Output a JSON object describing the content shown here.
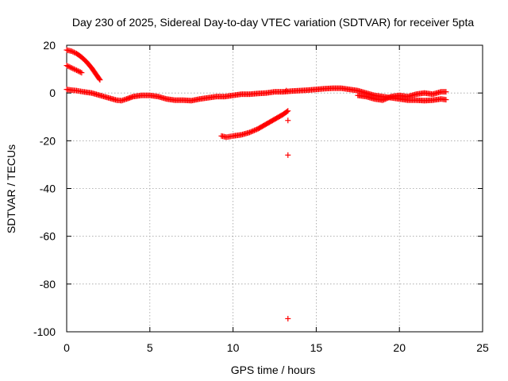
{
  "chart_data": {
    "type": "scatter",
    "title": "Day 230 of 2025, Sidereal Day-to-day VTEC variation (SDTVAR) for receiver 5pta",
    "xlabel": "GPS time / hours",
    "ylabel": "SDTVAR / TECUs",
    "xlim": [
      0,
      25
    ],
    "ylim": [
      -100,
      20
    ],
    "xticks": [
      0,
      5,
      10,
      15,
      20,
      25
    ],
    "yticks": [
      -100,
      -80,
      -60,
      -40,
      -20,
      0,
      20
    ],
    "xtick_labels": [
      "0",
      "5",
      "10",
      "15",
      "20",
      "25"
    ],
    "ytick_labels": [
      "-100",
      "-80",
      "-60",
      "-40",
      "-20",
      "0",
      "20"
    ],
    "grid": true,
    "marker_color": "#ff0000",
    "series": [
      {
        "name": "main-track",
        "marker": "plus",
        "points": [
          [
            0.0,
            1.5
          ],
          [
            0.3,
            1.2
          ],
          [
            0.6,
            1.0
          ],
          [
            1.0,
            0.5
          ],
          [
            1.5,
            0.0
          ],
          [
            2.0,
            -1.0
          ],
          [
            2.5,
            -2.0
          ],
          [
            3.0,
            -3.0
          ],
          [
            3.3,
            -3.2
          ],
          [
            3.6,
            -2.5
          ],
          [
            4.0,
            -1.5
          ],
          [
            4.5,
            -1.0
          ],
          [
            5.0,
            -1.0
          ],
          [
            5.5,
            -1.5
          ],
          [
            6.0,
            -2.5
          ],
          [
            6.5,
            -3.0
          ],
          [
            7.0,
            -3.0
          ],
          [
            7.5,
            -3.2
          ],
          [
            8.0,
            -2.5
          ],
          [
            8.5,
            -2.0
          ],
          [
            9.0,
            -1.5
          ],
          [
            9.5,
            -1.5
          ],
          [
            10.0,
            -1.0
          ],
          [
            10.5,
            -0.5
          ],
          [
            11.0,
            -0.5
          ],
          [
            11.5,
            -0.2
          ],
          [
            12.0,
            0.0
          ],
          [
            12.5,
            0.5
          ],
          [
            13.0,
            0.5
          ],
          [
            13.5,
            0.8
          ],
          [
            14.0,
            1.0
          ],
          [
            14.5,
            1.2
          ],
          [
            15.0,
            1.5
          ],
          [
            15.5,
            1.8
          ],
          [
            16.0,
            2.0
          ],
          [
            16.5,
            2.0
          ],
          [
            17.0,
            1.5
          ],
          [
            17.5,
            1.0
          ],
          [
            18.0,
            0.0
          ],
          [
            18.5,
            -1.0
          ],
          [
            19.0,
            -1.5
          ],
          [
            19.5,
            -2.0
          ],
          [
            20.0,
            -2.5
          ],
          [
            20.5,
            -3.0
          ],
          [
            21.0,
            -3.0
          ],
          [
            21.5,
            -3.2
          ],
          [
            22.0,
            -3.0
          ],
          [
            22.5,
            -2.5
          ],
          [
            22.8,
            -2.8
          ]
        ]
      },
      {
        "name": "secondary-track",
        "marker": "plus",
        "points": [
          [
            17.5,
            -1.0
          ],
          [
            18.0,
            -1.5
          ],
          [
            18.5,
            -2.5
          ],
          [
            19.0,
            -3.0
          ],
          [
            19.5,
            -1.5
          ],
          [
            20.0,
            -1.0
          ],
          [
            20.5,
            -1.5
          ],
          [
            21.0,
            -0.5
          ],
          [
            21.5,
            0.0
          ],
          [
            22.0,
            -0.5
          ],
          [
            22.5,
            0.5
          ],
          [
            22.8,
            0.5
          ]
        ]
      },
      {
        "name": "high-arc",
        "marker": "plus",
        "points": [
          [
            0.0,
            18.0
          ],
          [
            0.3,
            17.5
          ],
          [
            0.6,
            16.5
          ],
          [
            0.9,
            15.0
          ],
          [
            1.2,
            13.0
          ],
          [
            1.5,
            10.5
          ],
          [
            1.8,
            7.5
          ],
          [
            2.0,
            5.5
          ]
        ]
      },
      {
        "name": "short-arc",
        "marker": "plus",
        "points": [
          [
            0.0,
            11.5
          ],
          [
            0.3,
            10.5
          ],
          [
            0.6,
            9.5
          ],
          [
            0.9,
            8.5
          ]
        ]
      },
      {
        "name": "rising-arc",
        "marker": "plus",
        "points": [
          [
            9.3,
            -18.0
          ],
          [
            9.6,
            -18.5
          ],
          [
            10.0,
            -18.0
          ],
          [
            10.5,
            -17.5
          ],
          [
            11.0,
            -16.5
          ],
          [
            11.5,
            -15.0
          ],
          [
            12.0,
            -13.0
          ],
          [
            12.5,
            -11.0
          ],
          [
            13.0,
            -9.0
          ],
          [
            13.3,
            -7.5
          ]
        ]
      },
      {
        "name": "outliers",
        "marker": "plus",
        "points": [
          [
            13.2,
            1.0
          ],
          [
            13.3,
            -11.5
          ],
          [
            13.3,
            -26.0
          ],
          [
            13.3,
            -94.5
          ]
        ]
      }
    ]
  }
}
